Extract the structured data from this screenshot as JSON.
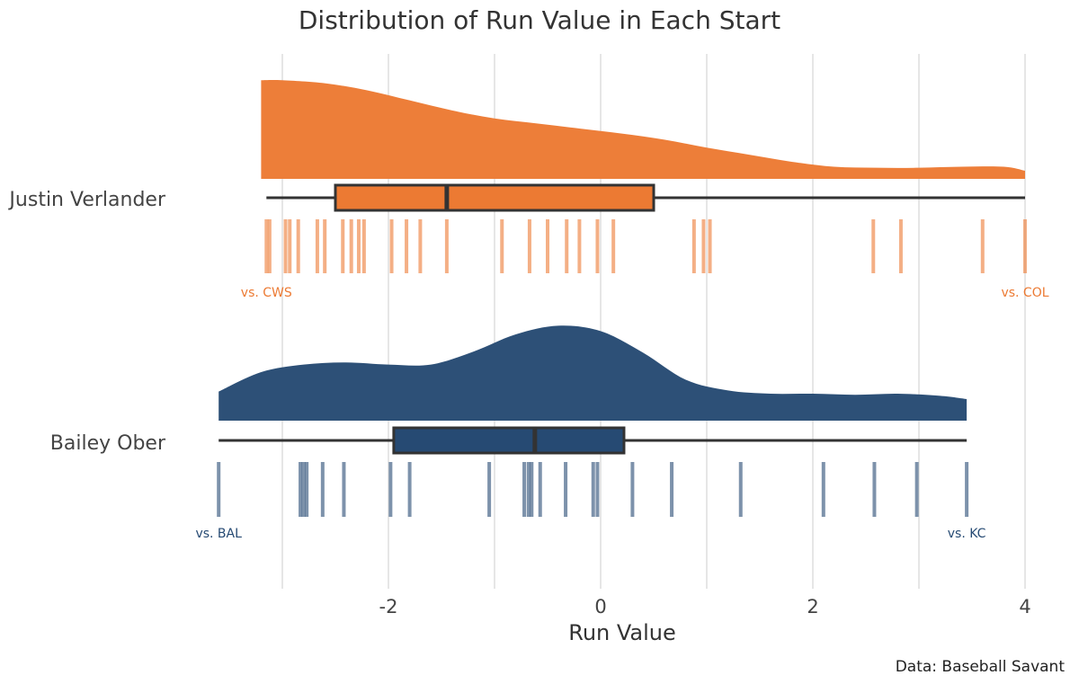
{
  "chart_data": {
    "type": "raincloud",
    "title": "Distribution of Run Value in Each Start",
    "xlabel": "Run Value",
    "caption": "Data: Baseball Savant",
    "xlim": [
      -3.6,
      4.2
    ],
    "xticks": [
      -2,
      0,
      2,
      4
    ],
    "gridlines": [
      -3,
      -2,
      -1,
      0,
      1,
      2,
      3,
      4
    ],
    "grid": true,
    "series": [
      {
        "name": "Justin Verlander",
        "color": "#ec7a33",
        "density": [
          [
            -3.2,
            0.98
          ],
          [
            -3.0,
            0.98
          ],
          [
            -2.6,
            0.95
          ],
          [
            -2.2,
            0.88
          ],
          [
            -1.8,
            0.78
          ],
          [
            -1.4,
            0.68
          ],
          [
            -1.0,
            0.6
          ],
          [
            -0.6,
            0.55
          ],
          [
            -0.2,
            0.5
          ],
          [
            0.2,
            0.45
          ],
          [
            0.6,
            0.39
          ],
          [
            1.0,
            0.31
          ],
          [
            1.4,
            0.24
          ],
          [
            1.8,
            0.17
          ],
          [
            2.2,
            0.12
          ],
          [
            2.6,
            0.11
          ],
          [
            3.0,
            0.11
          ],
          [
            3.4,
            0.12
          ],
          [
            3.8,
            0.12
          ],
          [
            4.0,
            0.08
          ]
        ],
        "box": {
          "min": -3.15,
          "q1": -2.5,
          "median": -1.45,
          "q3": 0.5,
          "max": 4.0
        },
        "points": [
          -3.15,
          -3.12,
          -2.97,
          -2.93,
          -2.85,
          -2.67,
          -2.6,
          -2.43,
          -2.35,
          -2.28,
          -2.23,
          -1.97,
          -1.83,
          -1.7,
          -1.45,
          -0.93,
          -0.67,
          -0.5,
          -0.32,
          -0.2,
          -0.03,
          0.12,
          0.88,
          0.97,
          1.03,
          2.57,
          2.83,
          3.6,
          4.0
        ],
        "low_label": "vs. CWS",
        "high_label": "vs. COL"
      },
      {
        "name": "Bailey Ober",
        "color": "#264a73",
        "density": [
          [
            -3.6,
            0.27
          ],
          [
            -3.2,
            0.45
          ],
          [
            -2.8,
            0.52
          ],
          [
            -2.4,
            0.54
          ],
          [
            -2.0,
            0.52
          ],
          [
            -1.6,
            0.52
          ],
          [
            -1.2,
            0.64
          ],
          [
            -0.8,
            0.8
          ],
          [
            -0.4,
            0.88
          ],
          [
            0.0,
            0.83
          ],
          [
            0.4,
            0.63
          ],
          [
            0.8,
            0.38
          ],
          [
            1.2,
            0.28
          ],
          [
            1.6,
            0.25
          ],
          [
            2.0,
            0.25
          ],
          [
            2.4,
            0.24
          ],
          [
            2.8,
            0.25
          ],
          [
            3.2,
            0.23
          ],
          [
            3.45,
            0.2
          ]
        ],
        "box": {
          "min": -3.6,
          "q1": -1.95,
          "median": -0.62,
          "q3": 0.22,
          "max": 3.45
        },
        "points": [
          -3.6,
          -2.83,
          -2.8,
          -2.77,
          -2.62,
          -2.42,
          -1.98,
          -1.8,
          -1.05,
          -0.72,
          -0.68,
          -0.65,
          -0.57,
          -0.33,
          -0.07,
          -0.03,
          0.3,
          0.67,
          1.32,
          2.1,
          2.58,
          2.98,
          3.45
        ],
        "low_label": "vs. BAL",
        "high_label": "vs. KC"
      }
    ]
  }
}
